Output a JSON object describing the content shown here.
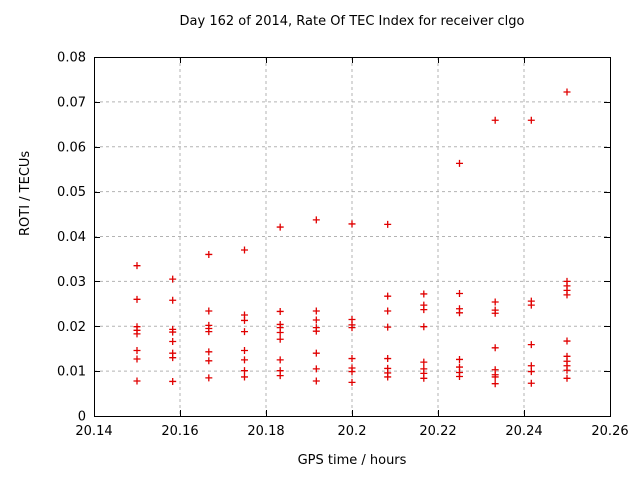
{
  "chart_data": {
    "type": "scatter",
    "title": "Day 162 of 2014, Rate Of TEC Index for receiver clgo",
    "xlabel": "GPS time / hours",
    "ylabel": "ROTI / TECUs",
    "xlim": [
      20.14,
      20.26
    ],
    "ylim": [
      0,
      0.08
    ],
    "x_ticks": [
      20.14,
      20.16,
      20.18,
      20.2,
      20.22,
      20.24,
      20.26
    ],
    "x_tick_labels": [
      "20.14",
      "20.16",
      "20.18",
      "20.2",
      "20.22",
      "20.24",
      "20.26"
    ],
    "y_ticks": [
      0,
      0.01,
      0.02,
      0.03,
      0.04,
      0.05,
      0.06,
      0.07,
      0.08
    ],
    "y_tick_labels": [
      "0",
      "0.01",
      "0.02",
      "0.03",
      "0.04",
      "0.05",
      "0.06",
      "0.07",
      "0.08"
    ],
    "grid": true,
    "legend": "none",
    "marker": "plus",
    "marker_color": "#e00000",
    "grid_color": "#b3b3b3",
    "axis_color": "#000000",
    "series": [
      {
        "name": "ROTI",
        "points": [
          [
            20.15,
            0.0335
          ],
          [
            20.15,
            0.026
          ],
          [
            20.15,
            0.0199
          ],
          [
            20.15,
            0.0191
          ],
          [
            20.15,
            0.0183
          ],
          [
            20.15,
            0.0146
          ],
          [
            20.15,
            0.0127
          ],
          [
            20.15,
            0.0078
          ],
          [
            20.1583,
            0.0305
          ],
          [
            20.1583,
            0.0258
          ],
          [
            20.1583,
            0.0193
          ],
          [
            20.1583,
            0.0187
          ],
          [
            20.1583,
            0.0166
          ],
          [
            20.1583,
            0.014
          ],
          [
            20.1583,
            0.013
          ],
          [
            20.1583,
            0.0077
          ],
          [
            20.1667,
            0.036
          ],
          [
            20.1667,
            0.0234
          ],
          [
            20.1667,
            0.0202
          ],
          [
            20.1667,
            0.0195
          ],
          [
            20.1667,
            0.0188
          ],
          [
            20.1667,
            0.0143
          ],
          [
            20.1667,
            0.0123
          ],
          [
            20.1667,
            0.0085
          ],
          [
            20.175,
            0.037
          ],
          [
            20.175,
            0.0225
          ],
          [
            20.175,
            0.0213
          ],
          [
            20.175,
            0.0188
          ],
          [
            20.175,
            0.0146
          ],
          [
            20.175,
            0.0125
          ],
          [
            20.175,
            0.0101
          ],
          [
            20.175,
            0.0087
          ],
          [
            20.1833,
            0.0421
          ],
          [
            20.1833,
            0.0233
          ],
          [
            20.1833,
            0.0204
          ],
          [
            20.1833,
            0.0197
          ],
          [
            20.1833,
            0.0186
          ],
          [
            20.1833,
            0.0171
          ],
          [
            20.1833,
            0.0125
          ],
          [
            20.1833,
            0.0101
          ],
          [
            20.1833,
            0.009
          ],
          [
            20.1917,
            0.0437
          ],
          [
            20.1917,
            0.0234
          ],
          [
            20.1917,
            0.0214
          ],
          [
            20.1917,
            0.0197
          ],
          [
            20.1917,
            0.0189
          ],
          [
            20.1917,
            0.014
          ],
          [
            20.1917,
            0.0105
          ],
          [
            20.1917,
            0.0078
          ],
          [
            20.2,
            0.0428
          ],
          [
            20.2,
            0.0215
          ],
          [
            20.2,
            0.0203
          ],
          [
            20.2,
            0.0197
          ],
          [
            20.2,
            0.0128
          ],
          [
            20.2,
            0.0107
          ],
          [
            20.2,
            0.0099
          ],
          [
            20.2,
            0.0075
          ],
          [
            20.2083,
            0.0427
          ],
          [
            20.2083,
            0.0267
          ],
          [
            20.2083,
            0.0234
          ],
          [
            20.2083,
            0.0198
          ],
          [
            20.2083,
            0.0128
          ],
          [
            20.2083,
            0.0106
          ],
          [
            20.2083,
            0.0096
          ],
          [
            20.2083,
            0.0087
          ],
          [
            20.2167,
            0.0272
          ],
          [
            20.2167,
            0.0247
          ],
          [
            20.2167,
            0.0237
          ],
          [
            20.2167,
            0.0199
          ],
          [
            20.2167,
            0.012
          ],
          [
            20.2167,
            0.0105
          ],
          [
            20.2167,
            0.0095
          ],
          [
            20.2167,
            0.0084
          ],
          [
            20.225,
            0.0563
          ],
          [
            20.225,
            0.0273
          ],
          [
            20.225,
            0.0239
          ],
          [
            20.225,
            0.023
          ],
          [
            20.225,
            0.0126
          ],
          [
            20.225,
            0.0109
          ],
          [
            20.225,
            0.0097
          ],
          [
            20.225,
            0.0088
          ],
          [
            20.2333,
            0.0659
          ],
          [
            20.2333,
            0.0254
          ],
          [
            20.2333,
            0.0236
          ],
          [
            20.2333,
            0.0229
          ],
          [
            20.2333,
            0.0152
          ],
          [
            20.2333,
            0.0103
          ],
          [
            20.2333,
            0.0092
          ],
          [
            20.2333,
            0.0087
          ],
          [
            20.2333,
            0.0072
          ],
          [
            20.2417,
            0.0659
          ],
          [
            20.2417,
            0.0256
          ],
          [
            20.2417,
            0.0247
          ],
          [
            20.2417,
            0.0159
          ],
          [
            20.2417,
            0.0112
          ],
          [
            20.2417,
            0.0099
          ],
          [
            20.2417,
            0.0073
          ],
          [
            20.25,
            0.0722
          ],
          [
            20.25,
            0.03
          ],
          [
            20.25,
            0.029
          ],
          [
            20.25,
            0.028
          ],
          [
            20.25,
            0.027
          ],
          [
            20.25,
            0.0167
          ],
          [
            20.25,
            0.0133
          ],
          [
            20.25,
            0.0122
          ],
          [
            20.25,
            0.0112
          ],
          [
            20.25,
            0.0102
          ],
          [
            20.25,
            0.0084
          ]
        ]
      }
    ]
  }
}
